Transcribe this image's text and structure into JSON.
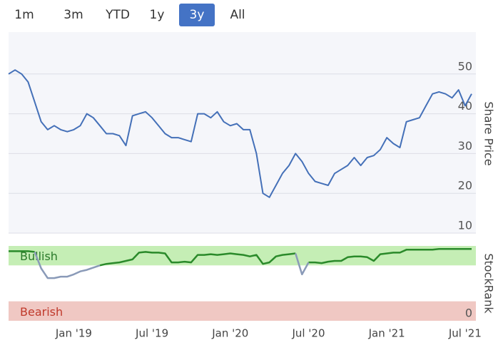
{
  "range_buttons": [
    "1m",
    "3m",
    "YTD",
    "1y",
    "3y",
    "All"
  ],
  "active_button": 4,
  "chart_data": [
    {
      "type": "line",
      "ylabel": "Share Price",
      "categories": [
        null,
        null,
        null,
        null,
        null,
        null,
        null,
        null,
        null,
        null,
        "Jan '19",
        null,
        null,
        null,
        null,
        null,
        null,
        null,
        null,
        null,
        null,
        null,
        "Jul '19",
        null,
        null,
        null,
        null,
        null,
        null,
        null,
        null,
        null,
        null,
        null,
        "Jan '20",
        null,
        null,
        null,
        null,
        null,
        null,
        null,
        null,
        null,
        null,
        null,
        "Jul '20",
        null,
        null,
        null,
        null,
        null,
        null,
        null,
        null,
        null,
        null,
        null,
        "Jan '21",
        null,
        null,
        null,
        null,
        null,
        null,
        null,
        null,
        null,
        null,
        null,
        "Jul '21",
        null
      ],
      "series": [
        {
          "color": "#4470b8",
          "values": [
            50,
            51,
            50,
            48,
            43,
            38,
            36,
            37,
            36,
            35.5,
            36,
            37,
            40,
            39,
            37,
            35,
            35,
            34.5,
            32,
            39.5,
            40,
            40.5,
            39,
            37,
            35,
            34,
            34,
            33.5,
            33,
            40,
            40,
            39,
            40.5,
            38,
            37,
            37.5,
            36,
            36,
            30,
            20,
            19,
            22,
            25,
            27,
            30,
            28,
            25,
            23,
            22.5,
            22,
            25,
            26,
            27,
            29,
            27,
            29,
            29.5,
            31,
            34,
            32.5,
            31.5,
            38,
            38.5,
            39,
            42,
            45,
            45.5,
            45,
            44,
            46,
            42,
            45
          ]
        }
      ],
      "ylim": [
        10,
        60
      ],
      "yticks": [
        10,
        20,
        30,
        40,
        50
      ],
      "grid": true
    },
    {
      "type": "line",
      "ylabel": "StockRank",
      "series": [
        {
          "color": "#2a8a2a",
          "values": [
            93,
            93,
            93,
            93,
            92,
            null,
            null,
            null,
            null,
            null,
            null,
            null,
            null,
            null,
            74,
            76,
            77,
            78,
            80,
            82,
            91,
            92,
            91,
            91,
            90,
            78,
            78,
            79,
            78,
            88,
            88,
            89,
            88,
            89,
            90,
            89,
            88,
            86,
            88,
            76,
            78,
            86,
            88,
            89,
            90,
            null,
            78,
            78,
            77,
            79,
            80,
            80,
            85,
            86,
            86,
            85,
            80,
            89,
            90,
            91,
            91,
            95,
            95,
            95,
            95,
            95,
            96,
            96,
            96,
            96,
            96,
            96
          ]
        },
        {
          "color": "#8a9ab8",
          "values": [
            null,
            null,
            null,
            null,
            92,
            70,
            57,
            57,
            59,
            59,
            62,
            66,
            68,
            71,
            74,
            null,
            null,
            null,
            null,
            null,
            null,
            null,
            null,
            null,
            null,
            null,
            null,
            null,
            null,
            null,
            null,
            null,
            null,
            null,
            null,
            null,
            null,
            null,
            null,
            null,
            null,
            null,
            null,
            null,
            90,
            62,
            78,
            null,
            null,
            null,
            null,
            null,
            null,
            null,
            null,
            null,
            null,
            null,
            null,
            null,
            null,
            null,
            null,
            null,
            null,
            null,
            null,
            null,
            null,
            null,
            null,
            null
          ]
        }
      ],
      "bands": [
        {
          "label": "Bullish",
          "range": [
            74,
            100
          ],
          "color": "#c5eeb5",
          "text_color": "#2a7a2a"
        },
        {
          "label": "Bearish",
          "range": [
            0,
            26
          ],
          "color": "#f0c8c3",
          "text_color": "#c0392b"
        }
      ],
      "ylim": [
        0,
        100
      ],
      "yticks": [
        0
      ]
    }
  ]
}
